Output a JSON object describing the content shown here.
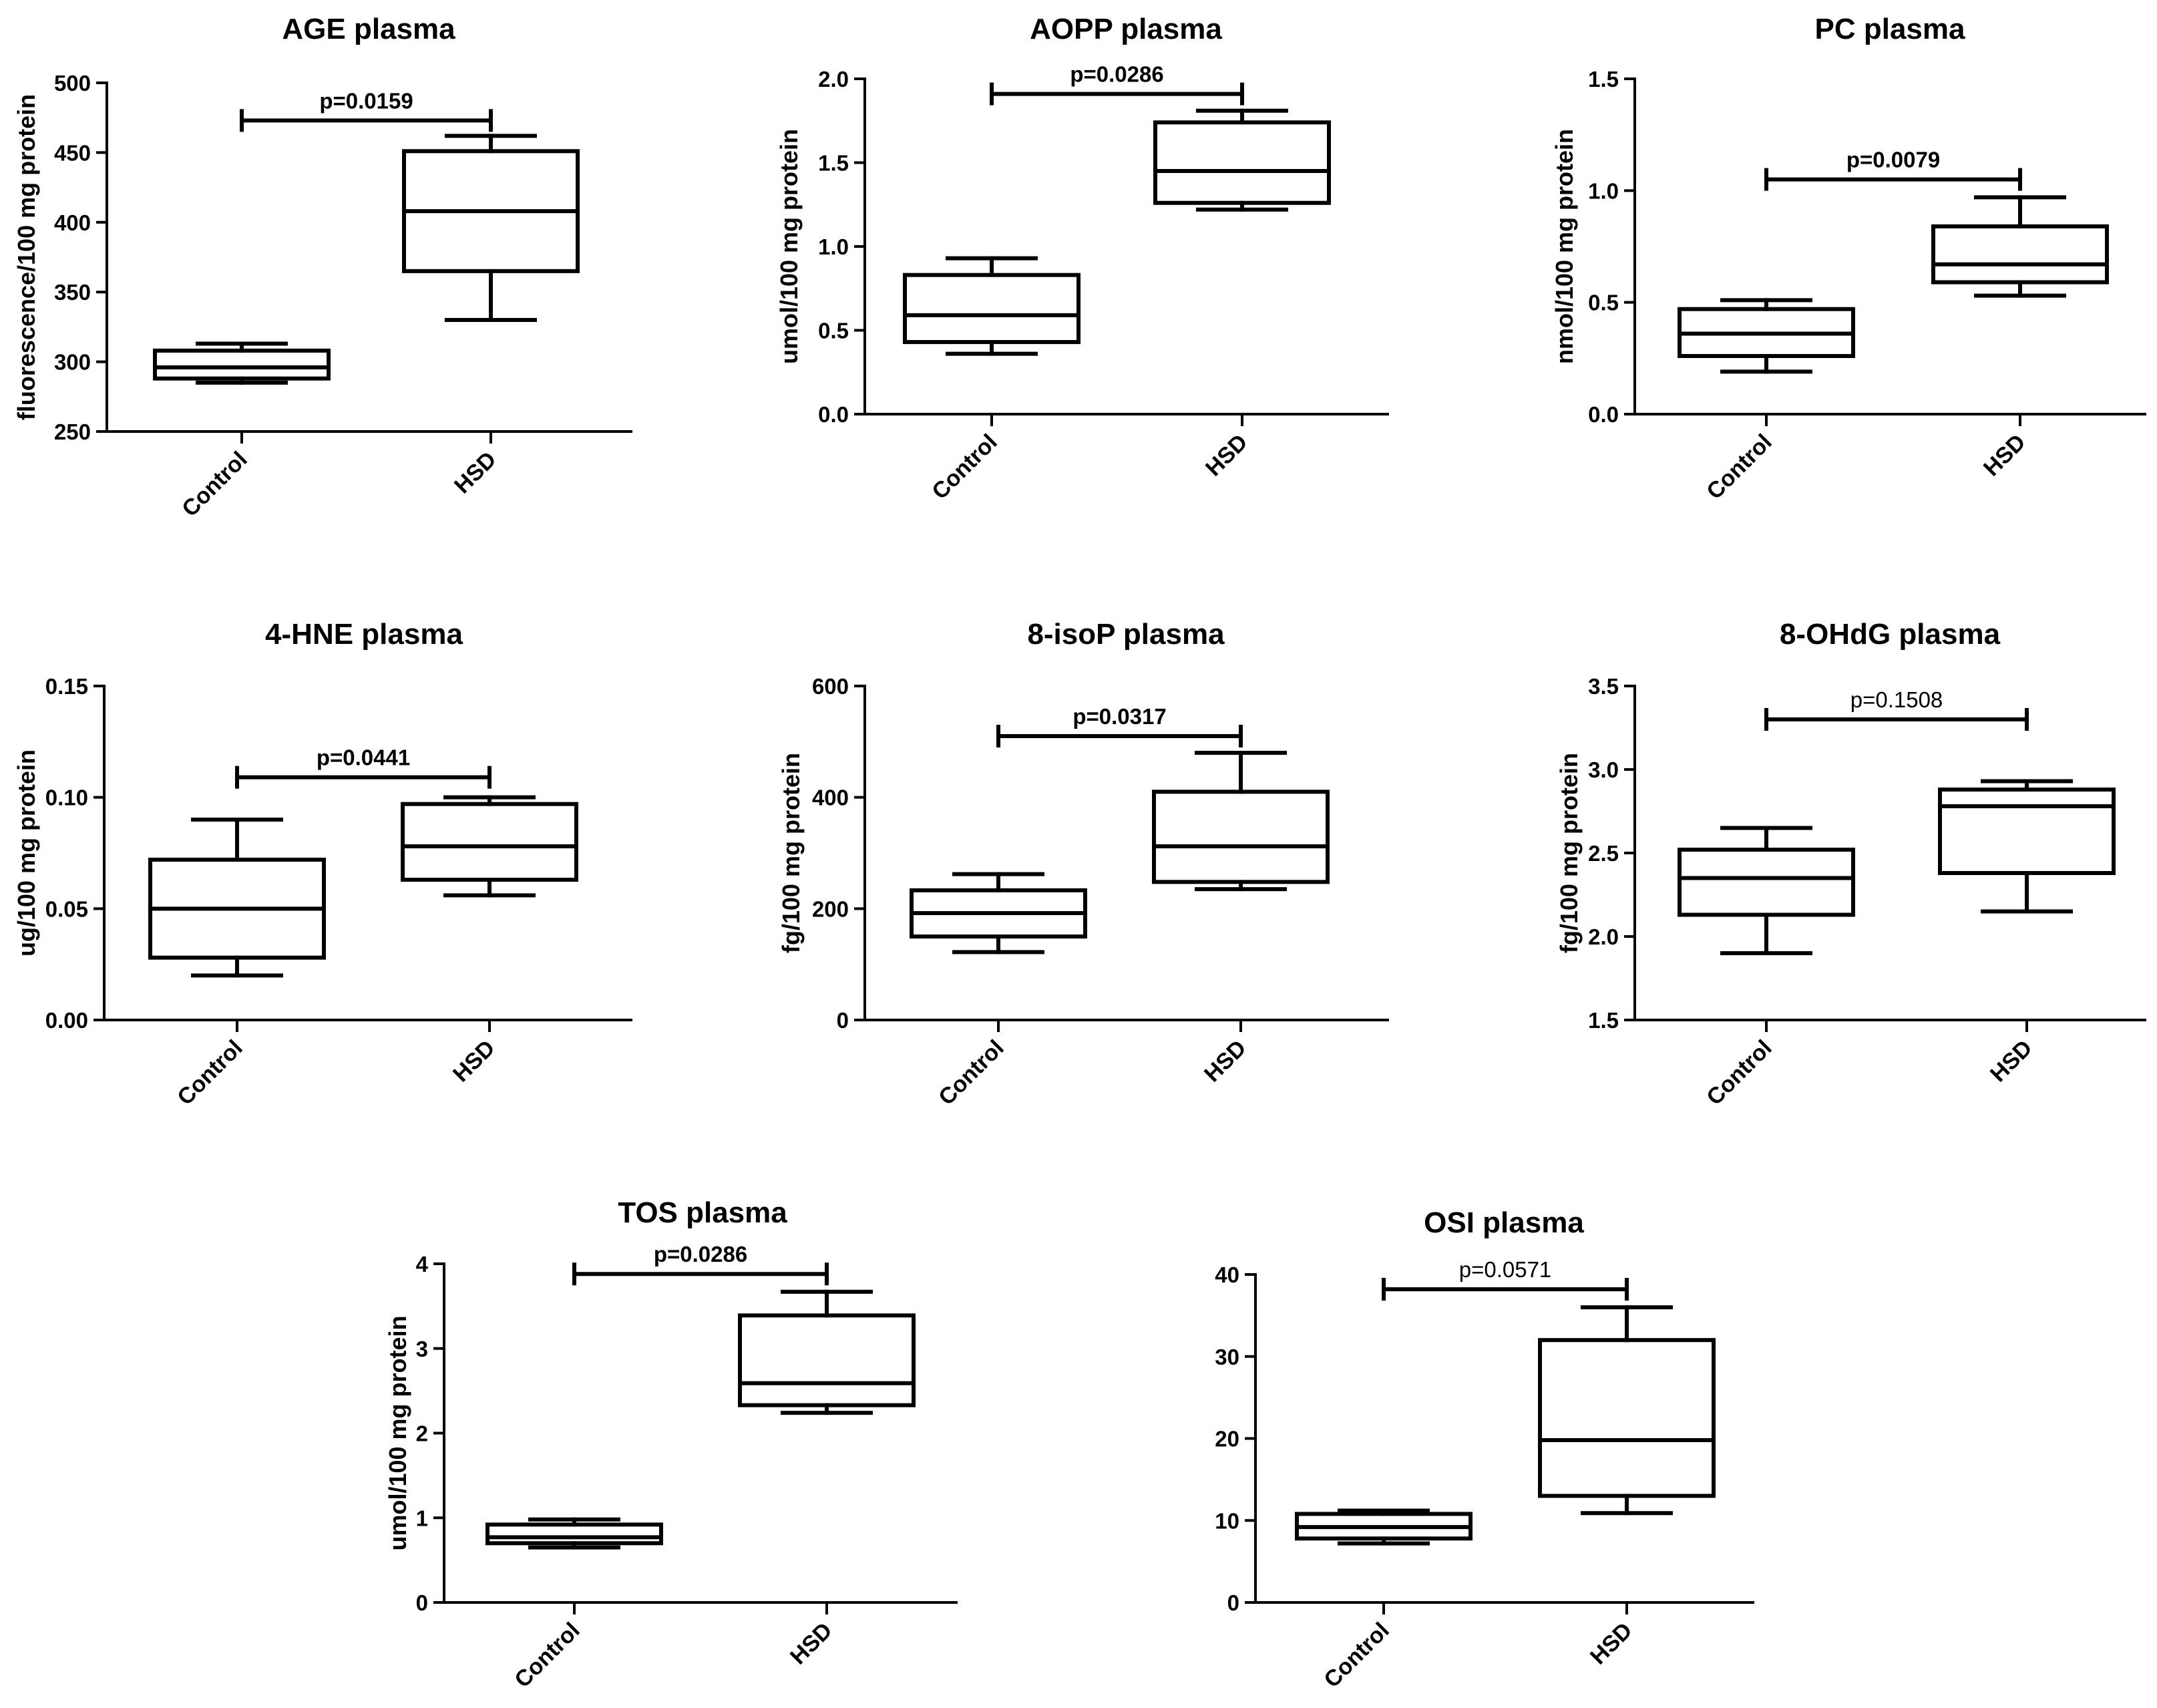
{
  "chart_data": [
    {
      "type": "box",
      "title": "AGE plasma",
      "ylabel": "fluorescence/100 mg protein",
      "categories": [
        "Control",
        "HSD"
      ],
      "ylim": [
        250,
        500
      ],
      "yticks": [
        250,
        300,
        350,
        400,
        450,
        500
      ],
      "ytick_labels": [
        "250",
        "300",
        "350",
        "400",
        "450",
        "500"
      ],
      "boxes": [
        {
          "min": 285,
          "q1": 288,
          "median": 296,
          "q3": 308,
          "max": 313
        },
        {
          "min": 330,
          "q1": 365,
          "median": 408,
          "q3": 451,
          "max": 462
        }
      ],
      "significance": {
        "label": "p=0.0159",
        "y": 473,
        "bold": true
      }
    },
    {
      "type": "box",
      "title": "AOPP plasma",
      "ylabel": "umol/100 mg protein",
      "categories": [
        "Control",
        "HSD"
      ],
      "ylim": [
        0,
        2
      ],
      "yticks": [
        0,
        0.5,
        1,
        1.5,
        2
      ],
      "ytick_labels": [
        "0.0",
        "0.5",
        "1.0",
        "1.5",
        "2.0"
      ],
      "boxes": [
        {
          "min": 0.36,
          "q1": 0.43,
          "median": 0.59,
          "q3": 0.83,
          "max": 0.93
        },
        {
          "min": 1.22,
          "q1": 1.26,
          "median": 1.45,
          "q3": 1.74,
          "max": 1.81
        }
      ],
      "significance": {
        "label": "p=0.0286",
        "y": 1.91,
        "bold": true
      }
    },
    {
      "type": "box",
      "title": "PC plasma",
      "ylabel": "nmol/100 mg protein",
      "categories": [
        "Control",
        "HSD"
      ],
      "ylim": [
        0,
        1.5
      ],
      "yticks": [
        0,
        0.5,
        1,
        1.5
      ],
      "ytick_labels": [
        "0.0",
        "0.5",
        "1.0",
        "1.5"
      ],
      "boxes": [
        {
          "min": 0.19,
          "q1": 0.26,
          "median": 0.36,
          "q3": 0.47,
          "max": 0.51
        },
        {
          "min": 0.53,
          "q1": 0.59,
          "median": 0.67,
          "q3": 0.84,
          "max": 0.97
        }
      ],
      "significance": {
        "label": "p=0.0079",
        "y": 1.05,
        "bold": true
      }
    },
    {
      "type": "box",
      "title": "4-HNE plasma",
      "ylabel": "ug/100 mg protein",
      "categories": [
        "Control",
        "HSD"
      ],
      "ylim": [
        0,
        0.15
      ],
      "yticks": [
        0,
        0.05,
        0.1,
        0.15
      ],
      "ytick_labels": [
        "0.00",
        "0.05",
        "0.10",
        "0.15"
      ],
      "boxes": [
        {
          "min": 0.02,
          "q1": 0.028,
          "median": 0.05,
          "q3": 0.072,
          "max": 0.09
        },
        {
          "min": 0.056,
          "q1": 0.063,
          "median": 0.078,
          "q3": 0.097,
          "max": 0.1
        }
      ],
      "significance": {
        "label": "p=0.0441",
        "y": 0.109,
        "bold": true
      }
    },
    {
      "type": "box",
      "title": "8-isoP plasma",
      "ylabel": "fg/100 mg protein",
      "categories": [
        "Control",
        "HSD"
      ],
      "ylim": [
        0,
        600
      ],
      "yticks": [
        0,
        200,
        400,
        600
      ],
      "ytick_labels": [
        "0",
        "200",
        "400",
        "600"
      ],
      "boxes": [
        {
          "min": 122,
          "q1": 150,
          "median": 192,
          "q3": 233,
          "max": 262
        },
        {
          "min": 235,
          "q1": 248,
          "median": 312,
          "q3": 410,
          "max": 480
        }
      ],
      "significance": {
        "label": "p=0.0317",
        "y": 510,
        "bold": true
      }
    },
    {
      "type": "box",
      "title": "8-OHdG plasma",
      "ylabel": "fg/100 mg protein",
      "categories": [
        "Control",
        "HSD"
      ],
      "ylim": [
        1.5,
        3.5
      ],
      "yticks": [
        1.5,
        2,
        2.5,
        3,
        3.5
      ],
      "ytick_labels": [
        "1.5",
        "2.0",
        "2.5",
        "3.0",
        "3.5"
      ],
      "boxes": [
        {
          "min": 1.9,
          "q1": 2.13,
          "median": 2.35,
          "q3": 2.52,
          "max": 2.65
        },
        {
          "min": 2.15,
          "q1": 2.38,
          "median": 2.78,
          "q3": 2.88,
          "max": 2.93
        }
      ],
      "significance": {
        "label": "p=0.1508",
        "y": 3.3,
        "bold": false
      }
    },
    {
      "type": "box",
      "title": "TOS plasma",
      "ylabel": "umol/100 mg protein",
      "categories": [
        "Control",
        "HSD"
      ],
      "ylim": [
        0,
        4
      ],
      "yticks": [
        0,
        1,
        2,
        3,
        4
      ],
      "ytick_labels": [
        "0",
        "1",
        "2",
        "3",
        "4"
      ],
      "boxes": [
        {
          "min": 0.65,
          "q1": 0.7,
          "median": 0.77,
          "q3": 0.92,
          "max": 0.98
        },
        {
          "min": 2.24,
          "q1": 2.33,
          "median": 2.59,
          "q3": 3.39,
          "max": 3.67
        }
      ],
      "significance": {
        "label": "p=0.0286",
        "y": 3.88,
        "bold": true
      }
    },
    {
      "type": "box",
      "title": "OSI plasma",
      "ylabel": "",
      "categories": [
        "Control",
        "HSD"
      ],
      "ylim": [
        0,
        40
      ],
      "yticks": [
        0,
        10,
        20,
        30,
        40
      ],
      "ytick_labels": [
        "0",
        "10",
        "20",
        "30",
        "40"
      ],
      "boxes": [
        {
          "min": 7.2,
          "q1": 7.8,
          "median": 9.2,
          "q3": 10.8,
          "max": 11.2
        },
        {
          "min": 10.9,
          "q1": 13,
          "median": 19.8,
          "q3": 32,
          "max": 36
        }
      ],
      "significance": {
        "label": "p=0.0571",
        "y": 38.2,
        "bold": false
      }
    }
  ]
}
